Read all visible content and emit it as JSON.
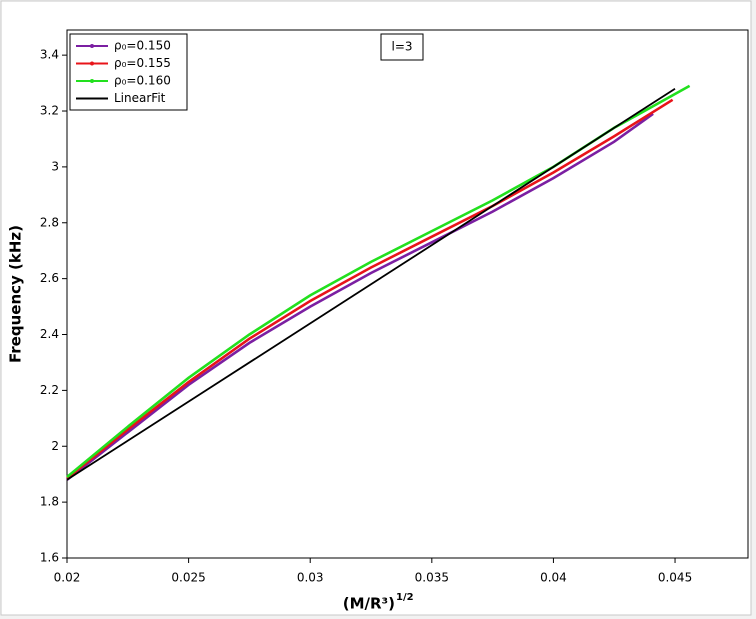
{
  "chart_data": {
    "type": "line",
    "ylabel": "Frequency (kHz)",
    "xlabel": "(M/R³)",
    "xlabel_exponent": "1/2",
    "annotation": "l=3",
    "xlim": [
      0.02,
      0.048
    ],
    "ylim": [
      1.6,
      3.49
    ],
    "xticks": [
      0.02,
      0.025,
      0.03,
      0.035,
      0.04,
      0.045
    ],
    "yticks": [
      1.6,
      1.8,
      2,
      2.2,
      2.4,
      2.6,
      2.8,
      3,
      3.2,
      3.4
    ],
    "legend": "top-left",
    "series": [
      {
        "name": "ρ₀=0.150",
        "color": "#7b1fa2",
        "x": [
          0.02,
          0.0225,
          0.025,
          0.0275,
          0.03,
          0.0325,
          0.035,
          0.0375,
          0.04,
          0.0425,
          0.0441
        ],
        "values": [
          1.88,
          2.05,
          2.22,
          2.37,
          2.5,
          2.62,
          2.73,
          2.84,
          2.96,
          3.09,
          3.19
        ]
      },
      {
        "name": "ρ₀=0.155",
        "color": "#e8141a",
        "x": [
          0.02,
          0.0225,
          0.025,
          0.0275,
          0.03,
          0.0325,
          0.035,
          0.0375,
          0.04,
          0.0425,
          0.0449
        ],
        "values": [
          1.885,
          2.06,
          2.23,
          2.385,
          2.52,
          2.64,
          2.75,
          2.86,
          2.98,
          3.11,
          3.24
        ]
      },
      {
        "name": "ρ₀=0.160",
        "color": "#22e01e",
        "x": [
          0.02,
          0.0225,
          0.025,
          0.0275,
          0.03,
          0.0325,
          0.035,
          0.0375,
          0.04,
          0.0425,
          0.0456
        ],
        "values": [
          1.89,
          2.07,
          2.245,
          2.4,
          2.54,
          2.66,
          2.77,
          2.88,
          3.0,
          3.14,
          3.29
        ]
      },
      {
        "name": "LinearFit",
        "color": "#000000",
        "x": [
          0.02,
          0.045
        ],
        "values": [
          1.88,
          3.28
        ]
      }
    ]
  }
}
